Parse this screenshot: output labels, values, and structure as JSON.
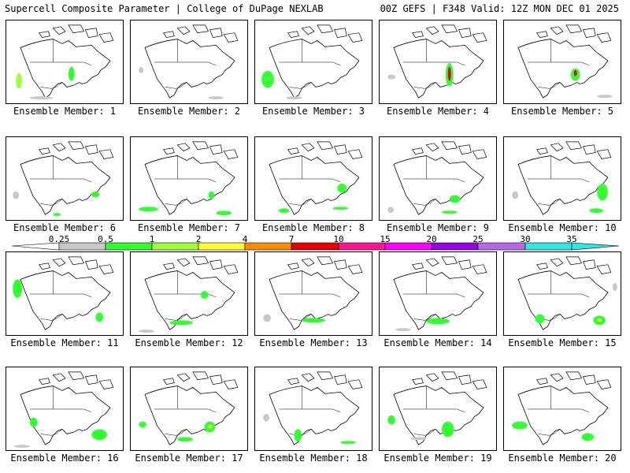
{
  "header": {
    "left": "Supercell Composite Parameter | College of DuPage NEXLAB",
    "right": "00Z GEFS | F348 Valid: 12Z MON DEC 01 2025"
  },
  "colorbar": {
    "labels": [
      "0.25",
      "0.5",
      "1",
      "2",
      "4",
      "7",
      "10",
      "15",
      "20",
      "25",
      "30",
      "35"
    ],
    "colors": [
      "#ffffff",
      "#c8c8c8",
      "#32ff32",
      "#a0ff3c",
      "#ffff32",
      "#ff8c00",
      "#e60000",
      "#ff1493",
      "#ff00ff",
      "#9600e6",
      "#b469e6",
      "#32e6e6"
    ]
  },
  "panels": [
    {
      "label": "Ensemble Member: 1",
      "blobs": [
        {
          "x": 12,
          "y": 68,
          "w": 8,
          "h": 20,
          "c": "#a0ff3c"
        },
        {
          "x": 80,
          "y": 60,
          "w": 8,
          "h": 18,
          "c": "#32ff32"
        },
        {
          "x": 30,
          "y": 98,
          "w": 30,
          "h": 4,
          "c": "#c8c8c8"
        }
      ]
    },
    {
      "label": "Ensemble Member: 2",
      "blobs": [
        {
          "x": 10,
          "y": 60,
          "w": 6,
          "h": 8,
          "c": "#c8c8c8"
        },
        {
          "x": 100,
          "y": 98,
          "w": 20,
          "h": 4,
          "c": "#c8c8c8"
        }
      ]
    },
    {
      "label": "Ensemble Member: 3",
      "blobs": [
        {
          "x": 8,
          "y": 65,
          "w": 16,
          "h": 22,
          "c": "#32ff32"
        },
        {
          "x": 40,
          "y": 98,
          "w": 20,
          "h": 4,
          "c": "#c8c8c8"
        }
      ]
    },
    {
      "label": "Ensemble Member: 4",
      "blobs": [
        {
          "x": 85,
          "y": 55,
          "w": 10,
          "h": 30,
          "c": "#32ff32"
        },
        {
          "x": 88,
          "y": 60,
          "w": 4,
          "h": 18,
          "c": "#e60000"
        },
        {
          "x": 10,
          "y": 70,
          "w": 10,
          "h": 6,
          "c": "#c8c8c8"
        }
      ]
    },
    {
      "label": "Ensemble Member: 5",
      "blobs": [
        {
          "x": 86,
          "y": 62,
          "w": 12,
          "h": 16,
          "c": "#32ff32"
        },
        {
          "x": 90,
          "y": 64,
          "w": 4,
          "h": 8,
          "c": "#e60000"
        },
        {
          "x": 120,
          "y": 96,
          "w": 20,
          "h": 4,
          "c": "#c8c8c8"
        }
      ]
    },
    {
      "label": "Ensemble Member: 6",
      "blobs": [
        {
          "x": 8,
          "y": 70,
          "w": 8,
          "h": 10,
          "c": "#c8c8c8"
        },
        {
          "x": 110,
          "y": 70,
          "w": 10,
          "h": 8,
          "c": "#32ff32"
        },
        {
          "x": 60,
          "y": 98,
          "w": 10,
          "h": 4,
          "c": "#32ff32"
        }
      ]
    },
    {
      "label": "Ensemble Member: 7",
      "blobs": [
        {
          "x": 100,
          "y": 70,
          "w": 8,
          "h": 10,
          "c": "#32ff32"
        },
        {
          "x": 10,
          "y": 90,
          "w": 25,
          "h": 6,
          "c": "#32ff32"
        },
        {
          "x": 110,
          "y": 95,
          "w": 20,
          "h": 6,
          "c": "#32ff32"
        }
      ]
    },
    {
      "label": "Ensemble Member: 8",
      "blobs": [
        {
          "x": 106,
          "y": 60,
          "w": 12,
          "h": 12,
          "c": "#32ff32"
        },
        {
          "x": 30,
          "y": 92,
          "w": 14,
          "h": 6,
          "c": "#32ff32"
        },
        {
          "x": 100,
          "y": 90,
          "w": 20,
          "h": 4,
          "c": "#32ff32"
        }
      ]
    },
    {
      "label": "Ensemble Member: 9",
      "blobs": [
        {
          "x": 90,
          "y": 75,
          "w": 14,
          "h": 10,
          "c": "#32ff32"
        },
        {
          "x": 10,
          "y": 90,
          "w": 8,
          "h": 8,
          "c": "#c8c8c8"
        },
        {
          "x": 80,
          "y": 95,
          "w": 20,
          "h": 4,
          "c": "#32ff32"
        }
      ]
    },
    {
      "label": "Ensemble Member: 10",
      "blobs": [
        {
          "x": 120,
          "y": 60,
          "w": 14,
          "h": 22,
          "c": "#32ff32"
        },
        {
          "x": 10,
          "y": 70,
          "w": 8,
          "h": 10,
          "c": "#c8c8c8"
        },
        {
          "x": 110,
          "y": 92,
          "w": 18,
          "h": 6,
          "c": "#32ff32"
        }
      ]
    },
    {
      "label": "Ensemble Member: 11",
      "blobs": [
        {
          "x": 8,
          "y": 35,
          "w": 12,
          "h": 24,
          "c": "#32ff32"
        },
        {
          "x": 115,
          "y": 78,
          "w": 10,
          "h": 12,
          "c": "#32ff32"
        }
      ]
    },
    {
      "label": "Ensemble Member: 12",
      "blobs": [
        {
          "x": 90,
          "y": 50,
          "w": 10,
          "h": 10,
          "c": "#32ff32"
        },
        {
          "x": 50,
          "y": 88,
          "w": 30,
          "h": 6,
          "c": "#32ff32"
        },
        {
          "x": 10,
          "y": 100,
          "w": 20,
          "h": 4,
          "c": "#c8c8c8"
        }
      ]
    },
    {
      "label": "Ensemble Member: 13",
      "blobs": [
        {
          "x": 60,
          "y": 85,
          "w": 30,
          "h": 6,
          "c": "#32ff32"
        },
        {
          "x": 10,
          "y": 80,
          "w": 10,
          "h": 10,
          "c": "#c8c8c8"
        }
      ]
    },
    {
      "label": "Ensemble Member: 14",
      "blobs": [
        {
          "x": 60,
          "y": 85,
          "w": 30,
          "h": 8,
          "c": "#32ff32"
        },
        {
          "x": 20,
          "y": 98,
          "w": 20,
          "h": 4,
          "c": "#c8c8c8"
        }
      ]
    },
    {
      "label": "Ensemble Member: 15",
      "blobs": [
        {
          "x": 40,
          "y": 80,
          "w": 12,
          "h": 12,
          "c": "#32ff32"
        },
        {
          "x": 115,
          "y": 82,
          "w": 16,
          "h": 12,
          "c": "#32ff32"
        },
        {
          "x": 120,
          "y": 86,
          "w": 6,
          "h": 4,
          "c": "#ffff32"
        },
        {
          "x": 140,
          "y": 40,
          "w": 6,
          "h": 10,
          "c": "#c8c8c8"
        }
      ]
    },
    {
      "label": "Ensemble Member: 16",
      "blobs": [
        {
          "x": 30,
          "y": 65,
          "w": 10,
          "h": 12,
          "c": "#32ff32"
        },
        {
          "x": 110,
          "y": 80,
          "w": 20,
          "h": 14,
          "c": "#32ff32"
        },
        {
          "x": 10,
          "y": 100,
          "w": 20,
          "h": 4,
          "c": "#c8c8c8"
        }
      ]
    },
    {
      "label": "Ensemble Member: 17",
      "blobs": [
        {
          "x": 95,
          "y": 70,
          "w": 14,
          "h": 14,
          "c": "#32ff32"
        },
        {
          "x": 100,
          "y": 74,
          "w": 5,
          "h": 5,
          "c": "#ffff32"
        },
        {
          "x": 60,
          "y": 90,
          "w": 20,
          "h": 6,
          "c": "#32ff32"
        },
        {
          "x": 10,
          "y": 70,
          "w": 10,
          "h": 8,
          "c": "#32ff32"
        }
      ]
    },
    {
      "label": "Ensemble Member: 18",
      "blobs": [
        {
          "x": 50,
          "y": 80,
          "w": 10,
          "h": 16,
          "c": "#32ff32"
        },
        {
          "x": 10,
          "y": 60,
          "w": 8,
          "h": 10,
          "c": "#c8c8c8"
        },
        {
          "x": 110,
          "y": 95,
          "w": 20,
          "h": 4,
          "c": "#32ff32"
        }
      ]
    },
    {
      "label": "Ensemble Member: 19",
      "blobs": [
        {
          "x": 80,
          "y": 70,
          "w": 16,
          "h": 20,
          "c": "#32ff32"
        },
        {
          "x": 10,
          "y": 62,
          "w": 10,
          "h": 12,
          "c": "#32ff32"
        },
        {
          "x": 40,
          "y": 90,
          "w": 20,
          "h": 4,
          "c": "#c8c8c8"
        }
      ]
    },
    {
      "label": "Ensemble Member: 20",
      "blobs": [
        {
          "x": 10,
          "y": 70,
          "w": 20,
          "h": 10,
          "c": "#32ff32"
        },
        {
          "x": 100,
          "y": 85,
          "w": 16,
          "h": 10,
          "c": "#32ff32"
        }
      ]
    }
  ]
}
